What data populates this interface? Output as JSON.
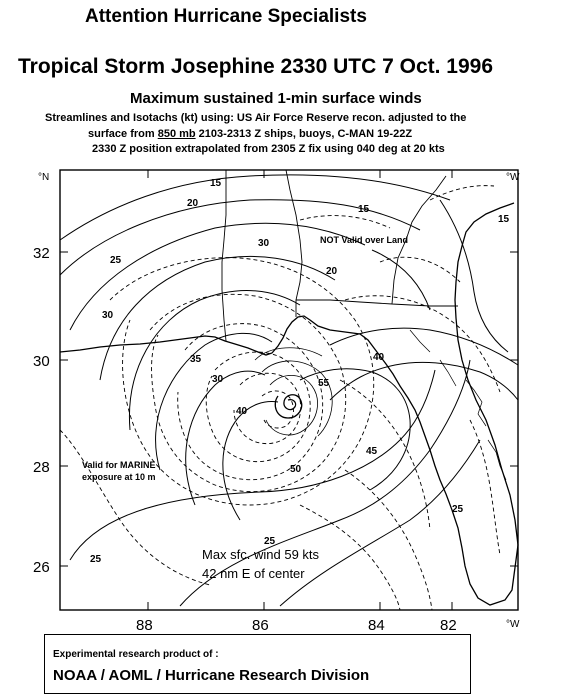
{
  "header": {
    "line1": "Attention  Hurricane Specialists",
    "line2": "Tropical Storm Josephine 2330 UTC 7 Oct. 1996",
    "line3": "Maximum sustained 1-min surface winds",
    "line4_a": "Streamlines and Isotachs (kt) using: US Air Force Reserve recon. adjusted to the",
    "line5_a": "surface from ",
    "line5_u": "850 mb",
    "line5_b": " 2103-2313 Z  ships, buoys, C-MAN  19-22Z",
    "line6": "2330 Z  position extrapolated from 2305 Z  fix using 040 deg at 20 kts"
  },
  "map": {
    "lat_ticks": [
      "32",
      "30",
      "28",
      "26"
    ],
    "lon_ticks": [
      "88",
      "86",
      "84",
      "82"
    ],
    "corner_labels": {
      "top_left": "°N",
      "top_right": "°W",
      "bottom_right": "°W"
    },
    "annotations": {
      "land": "NOT Valid over Land",
      "marine1": "Valid for MARINE",
      "marine2": "exposure at 10 m",
      "maxwind1": "Max sfc. wind 59 kts",
      "maxwind2": "42 nm E of center"
    },
    "isotach_labels": [
      "15",
      "20",
      "25",
      "30",
      "30",
      "35",
      "40",
      "45",
      "50",
      "55",
      "25",
      "20",
      "15",
      "30",
      "25",
      "25",
      "15",
      "40"
    ],
    "colors": {
      "lines": "#000000",
      "background": "#ffffff"
    }
  },
  "footer": {
    "line1": "Experimental research product of :",
    "line2": "NOAA / AOML / Hurricane Research Division"
  }
}
